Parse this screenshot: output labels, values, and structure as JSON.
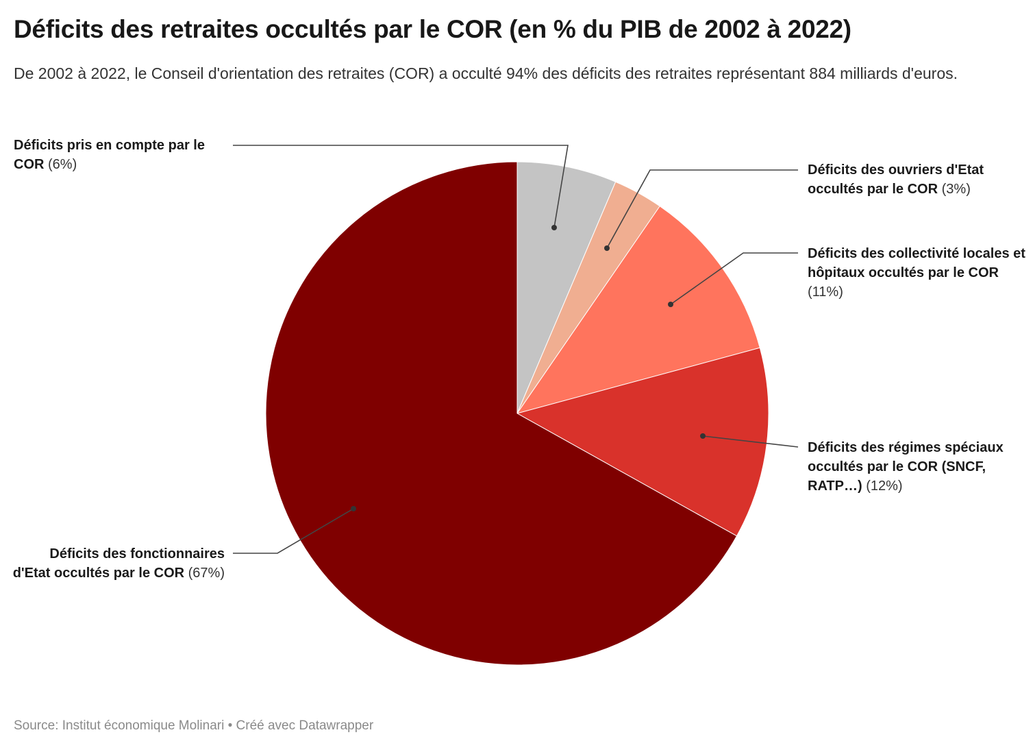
{
  "header": {
    "title": "Déficits des retraites occultés par le COR (en % du PIB de 2002 à 2022)",
    "subtitle": "De 2002 à 2022, le Conseil d'orientation des retraites (COR) a occulté 94% des déficits des retraites représentant 884 milliards d'euros."
  },
  "chart_data": {
    "type": "pie",
    "start": "top",
    "direction": "clockwise",
    "slices": [
      {
        "label": "Déficits pris en compte par le COR",
        "pct_label": "(6%)",
        "value": 6.4,
        "color": "#c4c4c4"
      },
      {
        "label": "Déficits des ouvriers d'Etat occultés par le COR",
        "pct_label": "(3%)",
        "value": 3.2,
        "color": "#f0ae91"
      },
      {
        "label": "Déficits des collectivité locales et hôpitaux occultés par le COR",
        "pct_label": "(11%)",
        "value": 11.2,
        "color": "#ff745d"
      },
      {
        "label": "Déficits des régimes spéciaux occultés par le COR (SNCF, RATP…)",
        "pct_label": "(12%)",
        "value": 12.3,
        "color": "#d9322b"
      },
      {
        "label": "Déficits des fonctionnaires d'Etat occultés par le COR",
        "pct_label": "(67%)",
        "value": 66.9,
        "color": "#7f0000"
      }
    ]
  },
  "footer": {
    "source": "Source: Institut économique Molinari • Créé avec Datawrapper"
  }
}
